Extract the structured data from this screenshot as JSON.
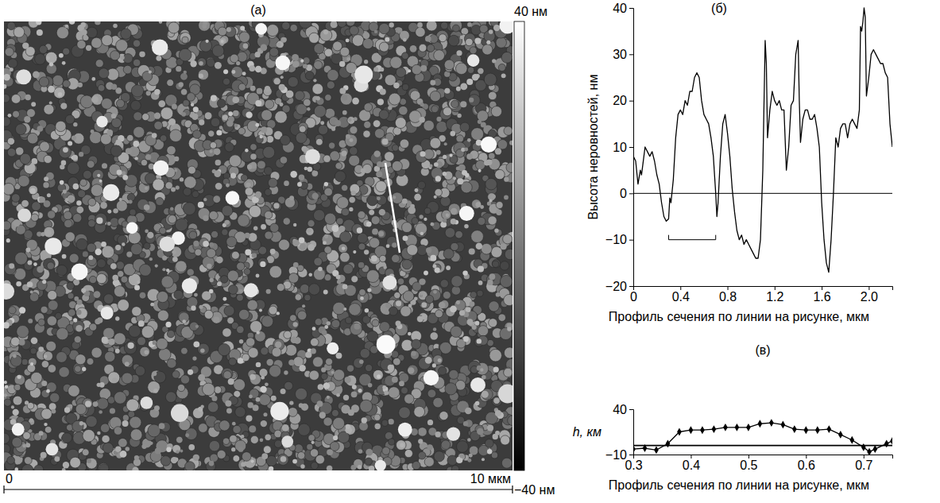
{
  "chart_data": [
    {
      "type": "image",
      "title": "(а)",
      "xlim": [
        0,
        10
      ],
      "xticks": [
        0,
        {
          "value": 10,
          "label": "10 мкм"
        }
      ],
      "colorbar": {
        "range": [
          -40,
          40
        ],
        "ticks": [
          {
            "value": 40,
            "label": "40 нм"
          },
          {
            "value": -40,
            "label": "−40 нм"
          }
        ]
      }
    },
    {
      "type": "line",
      "title": "(б)",
      "xlabel": "Профиль сечения по линии на рисунке, мкм",
      "ylabel": "Высота неровностей, нм",
      "color": "#000000",
      "xlim": [
        0,
        2.2
      ],
      "xticks": [
        0,
        0.4,
        0.8,
        1.2,
        1.6,
        {
          "value": 2,
          "label": "2.0"
        }
      ],
      "ylim": [
        -20,
        40
      ],
      "yticks": [
        {
          "value": -20,
          "label": "−20"
        },
        {
          "value": -10,
          "label": "−10"
        },
        0,
        10,
        20,
        30,
        40
      ],
      "hline": 0,
      "bracket": {
        "x": [
          0.3,
          0.7
        ],
        "y": -10
      },
      "x": [
        0,
        0.02,
        0.04,
        0.06,
        0.07,
        0.08,
        0.1,
        0.12,
        0.14,
        0.16,
        0.18,
        0.2,
        0.22,
        0.24,
        0.26,
        0.28,
        0.3,
        0.31,
        0.32,
        0.34,
        0.36,
        0.38,
        0.4,
        0.42,
        0.44,
        0.46,
        0.48,
        0.5,
        0.52,
        0.54,
        0.56,
        0.58,
        0.6,
        0.62,
        0.64,
        0.66,
        0.68,
        0.7,
        0.71,
        0.72,
        0.74,
        0.76,
        0.78,
        0.8,
        0.82,
        0.84,
        0.86,
        0.88,
        0.9,
        0.92,
        0.94,
        0.96,
        0.98,
        1.0,
        1.02,
        1.04,
        1.06,
        1.08,
        1.1,
        1.12,
        1.13,
        1.14,
        1.16,
        1.18,
        1.2,
        1.22,
        1.24,
        1.26,
        1.28,
        1.3,
        1.32,
        1.34,
        1.36,
        1.38,
        1.4,
        1.41,
        1.42,
        1.44,
        1.46,
        1.48,
        1.5,
        1.52,
        1.54,
        1.56,
        1.58,
        1.6,
        1.62,
        1.64,
        1.66,
        1.68,
        1.7,
        1.72,
        1.74,
        1.76,
        1.78,
        1.8,
        1.82,
        1.84,
        1.86,
        1.88,
        1.9,
        1.92,
        1.93,
        1.94,
        1.95,
        1.96,
        1.97,
        1.98,
        2.0,
        2.02,
        2.04,
        2.06,
        2.08,
        2.1,
        2.12,
        2.14,
        2.16,
        2.18,
        2.2
      ],
      "values": [
        8,
        7,
        2,
        5,
        4,
        6,
        10,
        9,
        8,
        9,
        7,
        4,
        2,
        -2,
        -5,
        -6,
        -5.5,
        -1,
        -2,
        3,
        12,
        17,
        18,
        17,
        20,
        19,
        22,
        22,
        25,
        26,
        25,
        20,
        17,
        16,
        15,
        12,
        8,
        0,
        -5,
        -2,
        8,
        15,
        17,
        13,
        8,
        1,
        -4,
        -8,
        -10,
        -9,
        -11,
        -10,
        -11,
        -12,
        -13,
        -14,
        -14,
        -10,
        5,
        33,
        28,
        12,
        18,
        22,
        20,
        19,
        20,
        18,
        18,
        5,
        10,
        19,
        20,
        30,
        33,
        20,
        11,
        16,
        18,
        18,
        16,
        16,
        17,
        14,
        10,
        -2,
        -10,
        -15,
        -17,
        -10,
        0,
        12,
        10,
        14,
        15,
        15,
        12,
        15,
        16,
        15,
        14,
        18,
        36,
        35,
        37,
        40,
        38,
        21,
        25,
        30,
        31,
        30,
        29,
        28,
        28,
        26,
        25,
        15,
        10
      ]
    },
    {
      "type": "line",
      "title": "(в)",
      "marker": "diamond",
      "xlabel": "Профиль сечения по линии на рисунке, мкм",
      "ylabel": "h, км",
      "color": "#000000",
      "xlim": [
        0.3,
        0.75
      ],
      "xticks": [
        0.3,
        0.4,
        0.5,
        0.6,
        0.7
      ],
      "ylim": [
        -10,
        40
      ],
      "yticks": [
        {
          "value": -10,
          "label": "−10"
        },
        40
      ],
      "hline": 0,
      "x": [
        0.3,
        0.32,
        0.34,
        0.36,
        0.38,
        0.4,
        0.42,
        0.44,
        0.46,
        0.48,
        0.5,
        0.52,
        0.54,
        0.56,
        0.58,
        0.6,
        0.62,
        0.64,
        0.66,
        0.68,
        0.7,
        0.71,
        0.72,
        0.74,
        0.75
      ],
      "values": [
        -4,
        -3,
        -5,
        2,
        15,
        17,
        17,
        18,
        20,
        20,
        20,
        24,
        25,
        23,
        18,
        17,
        17,
        18,
        12,
        6,
        -2,
        -7,
        -4,
        2,
        5
      ]
    }
  ]
}
